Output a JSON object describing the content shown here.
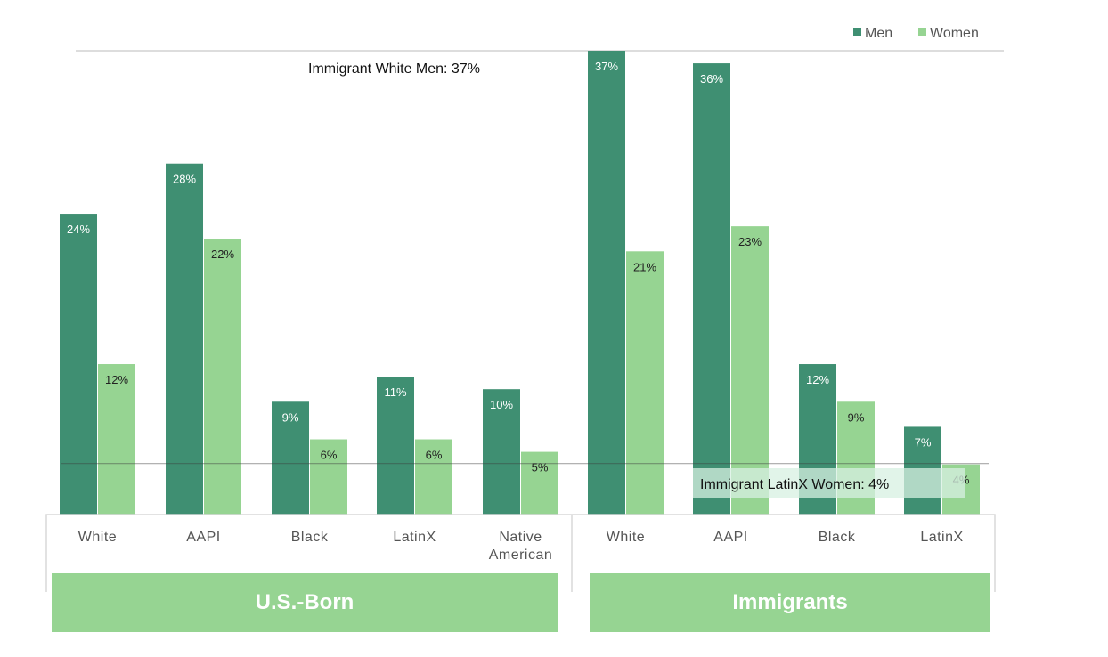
{
  "chart_data": {
    "type": "bar",
    "groups": [
      {
        "label": "U.S.-Born",
        "categories": [
          "White",
          "AAPI",
          "Black",
          "LatinX",
          "Native American"
        ]
      },
      {
        "label": "Immigrants",
        "categories": [
          "White",
          "AAPI",
          "Black",
          "LatinX"
        ]
      }
    ],
    "series": [
      {
        "name": "Men",
        "color": "#3f8f72",
        "values": [
          24,
          28,
          9,
          11,
          10,
          37,
          36,
          12,
          7
        ]
      },
      {
        "name": "Women",
        "color": "#96d492",
        "values": [
          12,
          22,
          6,
          6,
          5,
          21,
          23,
          9,
          4
        ]
      }
    ],
    "data_labels": {
      "Men": [
        "24%",
        "28%",
        "9%",
        "11%",
        "10%",
        "37%",
        "36%",
        "12%",
        "7%"
      ],
      "Women": [
        "12%",
        "22%",
        "6%",
        "6%",
        "5%",
        "21%",
        "23%",
        "9%",
        "4%"
      ]
    },
    "reference_lines": [
      {
        "value": 37,
        "label": "Immigrant White Men: 37%"
      },
      {
        "value": 4,
        "label": "Immigrant LatinX Women: 4%"
      }
    ],
    "ylim": [
      0,
      37
    ],
    "legend": "top-right",
    "grid": false
  }
}
